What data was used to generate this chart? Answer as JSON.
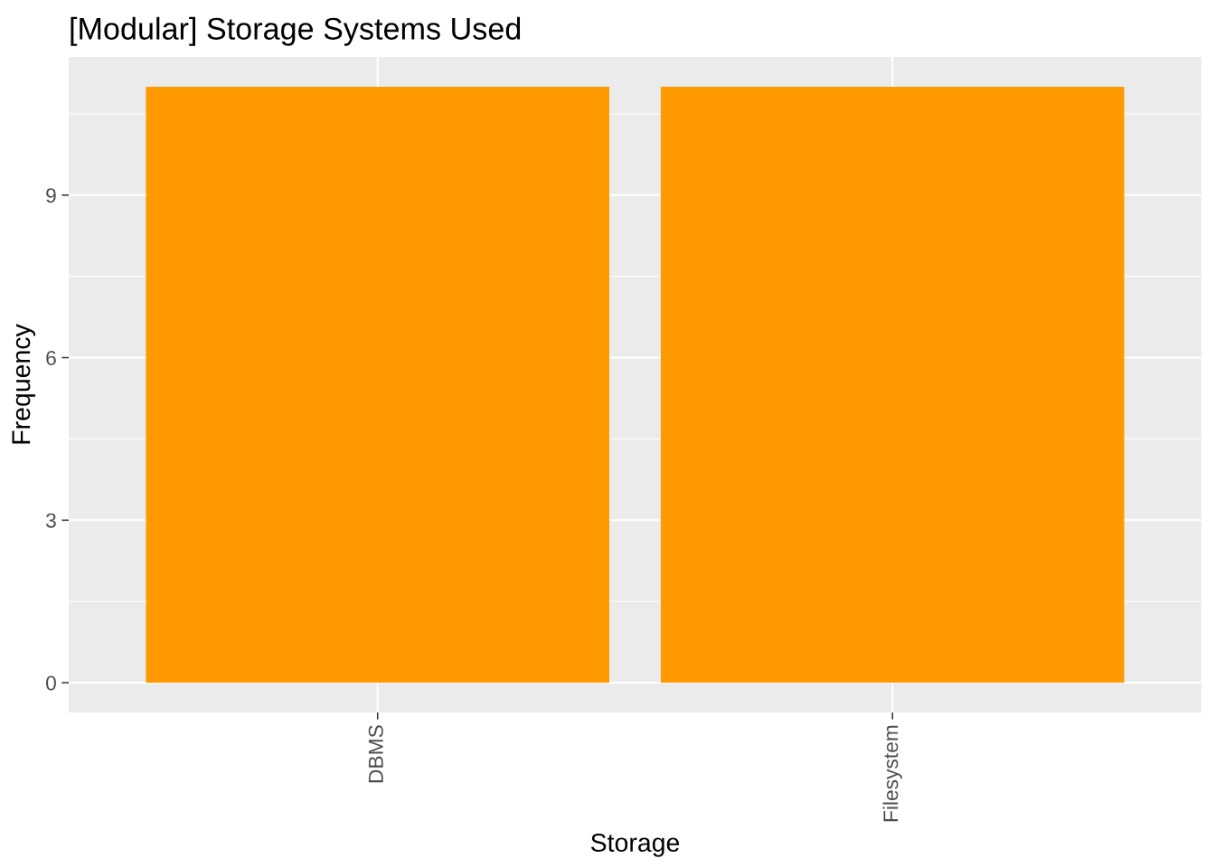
{
  "chart_data": {
    "type": "bar",
    "title": "[Modular] Storage Systems Used",
    "xlabel": "Storage",
    "ylabel": "Frequency",
    "categories": [
      "DBMS",
      "Filesystem"
    ],
    "values": [
      11,
      11
    ],
    "color": "#ff9900",
    "ylim": [
      -0.55,
      11.55
    ],
    "yticks": [
      0,
      3,
      6,
      9
    ],
    "grid": true
  }
}
